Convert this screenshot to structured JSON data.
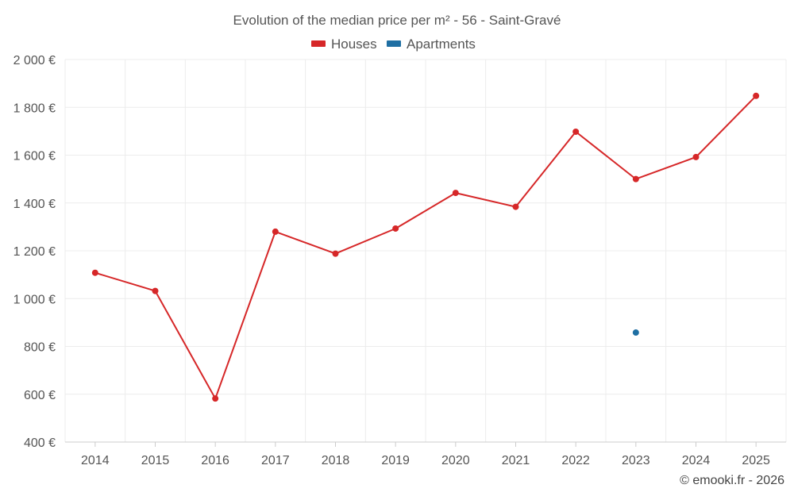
{
  "chart_data": {
    "type": "line",
    "title": "Evolution of the median price per m² - 56 - Saint-Gravé",
    "x": [
      "2014",
      "2015",
      "2016",
      "2017",
      "2018",
      "2019",
      "2020",
      "2021",
      "2022",
      "2023",
      "2024",
      "2025"
    ],
    "ylim": [
      400,
      2000
    ],
    "yticks": [
      400,
      600,
      800,
      1000,
      1200,
      1400,
      1600,
      1800,
      2000
    ],
    "ytick_labels": [
      "400 €",
      "600 €",
      "800 €",
      "1 000 €",
      "1 200 €",
      "1 400 €",
      "1 600 €",
      "1 800 €",
      "2 000 €"
    ],
    "grid": true,
    "legend_position": "top-center",
    "series": [
      {
        "name": "Houses",
        "color": "#d62728",
        "values": [
          1108,
          1032,
          582,
          1280,
          1188,
          1293,
          1442,
          1384,
          1698,
          1500,
          1592,
          1848
        ]
      },
      {
        "name": "Apartments",
        "color": "#1f6fa3",
        "values": [
          null,
          null,
          null,
          null,
          null,
          null,
          null,
          null,
          null,
          858,
          null,
          null
        ]
      }
    ]
  },
  "credit": "© emooki.fr - 2026"
}
